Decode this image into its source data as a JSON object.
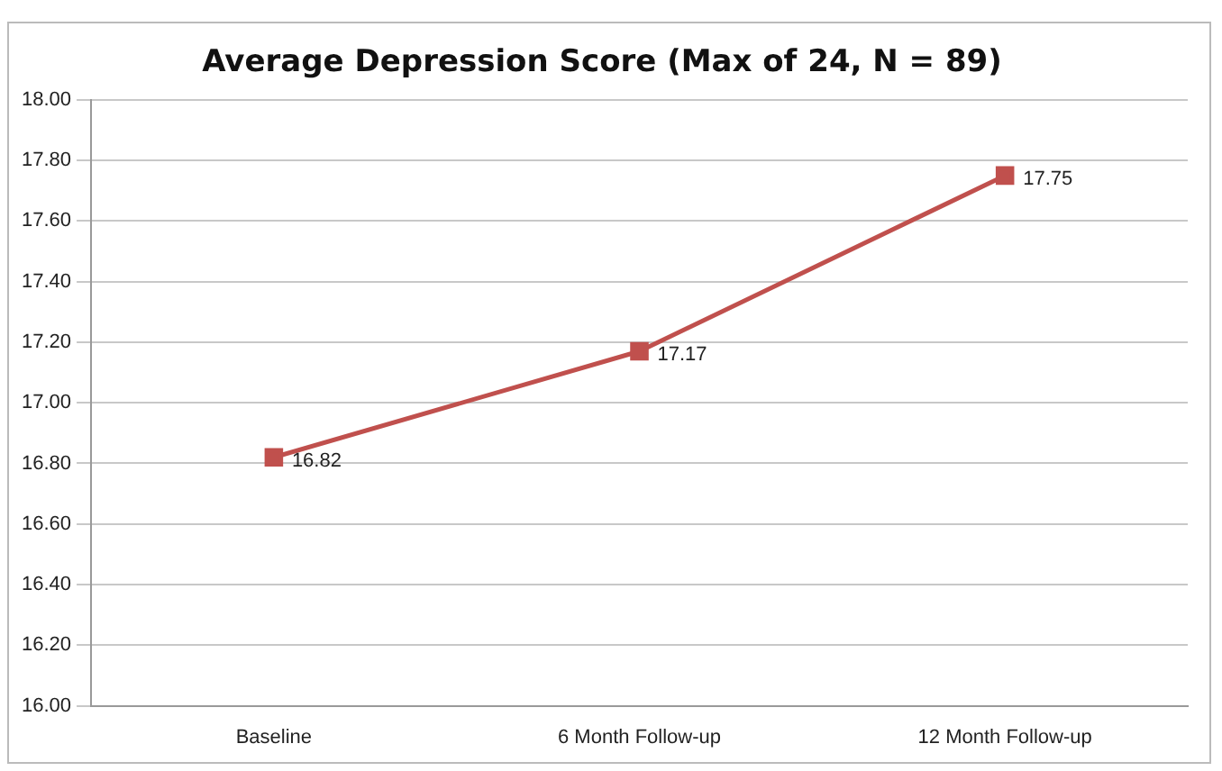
{
  "chart_data": {
    "type": "line",
    "title": "Average Depression Score (Max of 24, N = 89)",
    "categories": [
      "Baseline",
      "6 Month Follow-up",
      "12 Month Follow-up"
    ],
    "series": [
      {
        "color": "#c0504d",
        "values": [
          16.82,
          17.17,
          17.75
        ]
      }
    ],
    "ylim": [
      16,
      18
    ],
    "yticks": [
      {
        "value": 16,
        "label": "16.00"
      },
      {
        "value": 16.2,
        "label": "16.20"
      },
      {
        "value": 16.4,
        "label": "16.40"
      },
      {
        "value": 16.6,
        "label": "16.60"
      },
      {
        "value": 16.8,
        "label": "16.80"
      },
      {
        "value": 17,
        "label": "17.00"
      },
      {
        "value": 17.2,
        "label": "17.20"
      },
      {
        "value": 17.4,
        "label": "17.40"
      },
      {
        "value": 17.6,
        "label": "17.60"
      },
      {
        "value": 17.8,
        "label": "17.80"
      },
      {
        "value": 18,
        "label": "18.00"
      }
    ],
    "grid": "y",
    "legend": false,
    "marker": "square",
    "line_style": "solid",
    "data_labels": true
  }
}
